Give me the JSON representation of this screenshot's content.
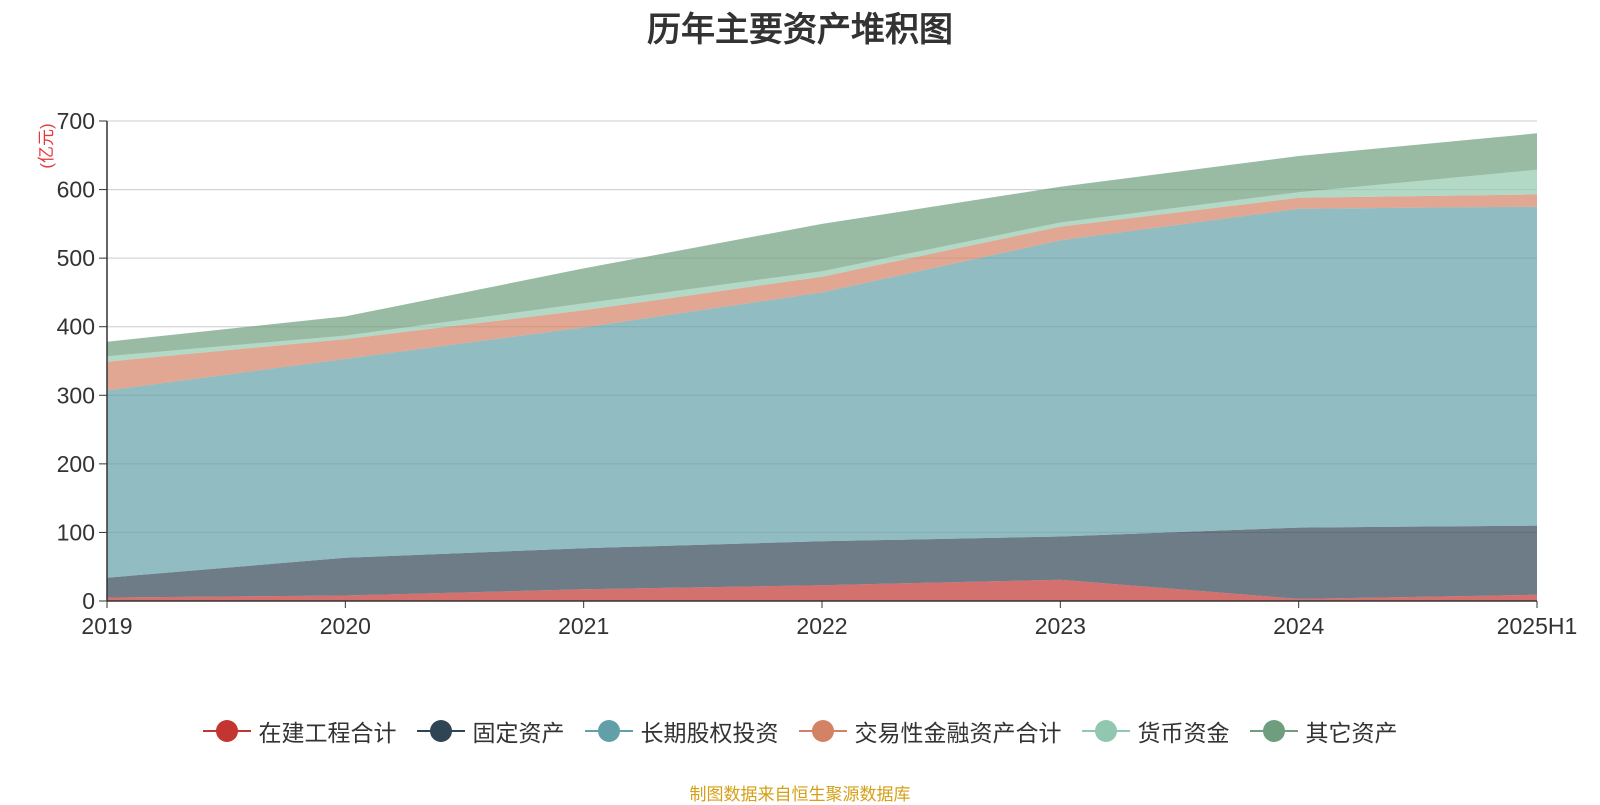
{
  "chart_data": {
    "type": "area",
    "stacked": true,
    "title": "历年主要资产堆积图",
    "ylabel": "(亿元)",
    "xlabel": "",
    "categories": [
      "2019",
      "2020",
      "2021",
      "2022",
      "2023",
      "2024",
      "2025H1"
    ],
    "ylim": [
      0,
      700
    ],
    "yticks": [
      "0",
      "100",
      "200",
      "300",
      "400",
      "500",
      "600",
      "700"
    ],
    "grid": true,
    "legend_position": "bottom",
    "series": [
      {
        "name": "在建工程合计",
        "color": "#c23531",
        "values": [
          5,
          8,
          17,
          23,
          31,
          3,
          9
        ]
      },
      {
        "name": "固定资产",
        "color": "#2f4554",
        "values": [
          29,
          55,
          60,
          64,
          63,
          104,
          101
        ]
      },
      {
        "name": "长期股权投资",
        "color": "#61a0a8",
        "values": [
          273,
          290,
          322,
          363,
          432,
          465,
          465
        ]
      },
      {
        "name": "交易性金融资产合计",
        "color": "#d48265",
        "values": [
          42,
          29,
          25,
          23,
          20,
          16,
          18
        ]
      },
      {
        "name": "货币资金",
        "color": "#91c7ae",
        "values": [
          8,
          5,
          10,
          8,
          6,
          8,
          36
        ]
      },
      {
        "name": "其它资产",
        "color": "#6e9e7e",
        "values": [
          21,
          28,
          51,
          69,
          52,
          53,
          53
        ]
      }
    ]
  },
  "source_note": "制图数据来自恒生聚源数据库"
}
